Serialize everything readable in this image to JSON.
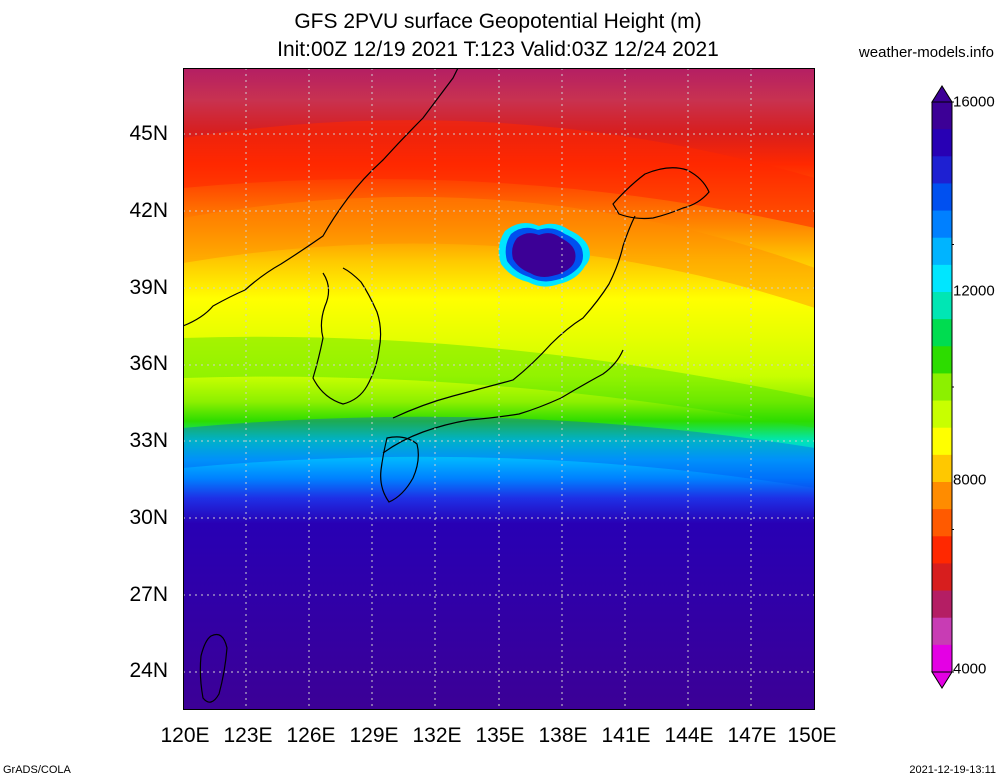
{
  "header": {
    "title_line1": "GFS 2PVU surface Geopotential Height (m)",
    "title_line2": "Init:00Z 12/19 2021 T:123 Valid:03Z 12/24 2021",
    "credit": "weather-models.info"
  },
  "map": {
    "lat_labels": [
      "45N",
      "42N",
      "39N",
      "36N",
      "33N",
      "30N",
      "27N",
      "24N"
    ],
    "lon_labels": [
      "120E",
      "123E",
      "126E",
      "129E",
      "132E",
      "135E",
      "138E",
      "141E",
      "144E",
      "147E",
      "150E"
    ],
    "lat_range": [
      22.5,
      47.5
    ],
    "lon_range": [
      120,
      150
    ],
    "grid": "dotted"
  },
  "colorbar": {
    "labels": [
      "16000",
      "12000",
      "8000",
      "4000"
    ],
    "colors": [
      "#e400e4",
      "#c83cb4",
      "#b41e64",
      "#d71e1e",
      "#ff2800",
      "#ff5a00",
      "#ff8c00",
      "#ffc800",
      "#ffff00",
      "#c8ff00",
      "#8cf000",
      "#2ddc00",
      "#00dc50",
      "#00e6b4",
      "#00e6ff",
      "#00b4ff",
      "#0080ff",
      "#0050f0",
      "#1e20d2",
      "#2800b4",
      "#3c0096"
    ]
  },
  "footer": {
    "left": "GrADS/COLA",
    "right": "2021-12-19-13:11"
  }
}
